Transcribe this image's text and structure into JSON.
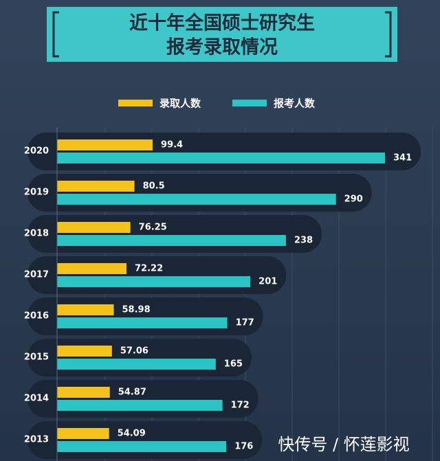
{
  "chart_data": {
    "type": "bar",
    "orientation": "horizontal",
    "title": [
      "近十年全国硕士研究生",
      "报考录取情况"
    ],
    "categories": [
      "2020",
      "2019",
      "2018",
      "2017",
      "2016",
      "2015",
      "2014",
      "2013"
    ],
    "series": [
      {
        "name": "录取人数",
        "color": "#f5c21b",
        "values": [
          99.4,
          80.5,
          76.25,
          72.22,
          58.98,
          57.06,
          54.87,
          54.09
        ]
      },
      {
        "name": "报考人数",
        "color": "#2cc3c5",
        "values": [
          341,
          290,
          238,
          201,
          177,
          165,
          172,
          176
        ]
      }
    ],
    "legend": "top"
  },
  "watermark": "快传号 / 怀莲影视"
}
